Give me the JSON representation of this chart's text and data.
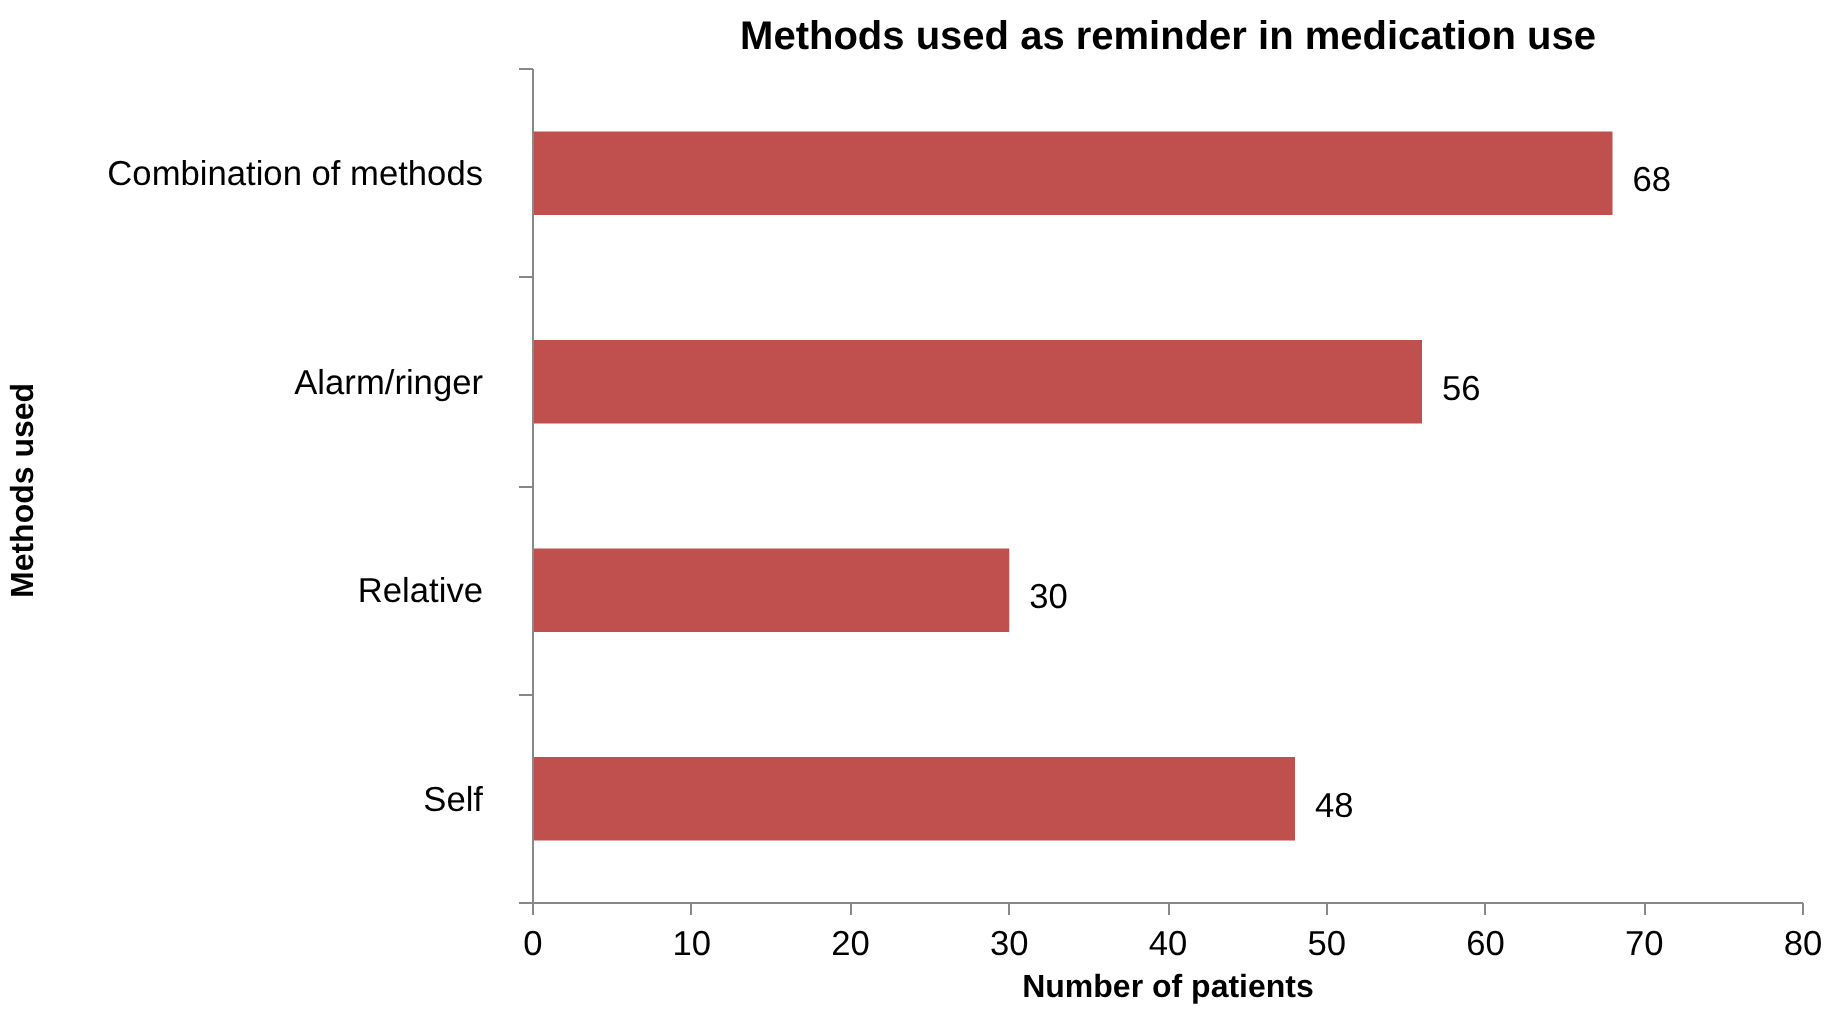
{
  "chart_data": {
    "type": "bar",
    "orientation": "horizontal",
    "title": "Methods used as reminder in medication use",
    "xlabel": "Number of patients",
    "ylabel": "Methods  used",
    "categories": [
      "Combination of methods",
      "Alarm/ringer",
      "Relative",
      "Self"
    ],
    "values": [
      68,
      56,
      30,
      48
    ],
    "color": "#c0504d",
    "data_labels": true,
    "xlim": [
      0,
      80
    ],
    "xticks": [
      0,
      10,
      20,
      30,
      40,
      50,
      60,
      70,
      80
    ],
    "grid": false
  }
}
